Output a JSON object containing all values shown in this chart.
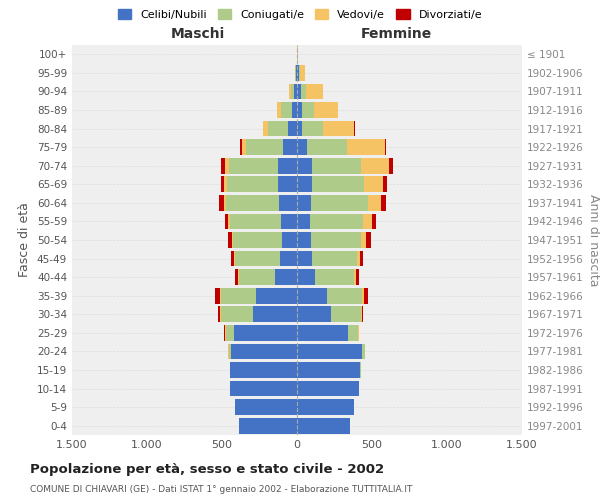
{
  "age_groups": [
    "0-4",
    "5-9",
    "10-14",
    "15-19",
    "20-24",
    "25-29",
    "30-34",
    "35-39",
    "40-44",
    "45-49",
    "50-54",
    "55-59",
    "60-64",
    "65-69",
    "70-74",
    "75-79",
    "80-84",
    "85-89",
    "90-94",
    "95-99",
    "100+"
  ],
  "birth_years": [
    "1997-2001",
    "1992-1996",
    "1987-1991",
    "1982-1986",
    "1977-1981",
    "1972-1976",
    "1967-1971",
    "1962-1966",
    "1957-1961",
    "1952-1956",
    "1947-1951",
    "1942-1946",
    "1937-1941",
    "1932-1936",
    "1927-1931",
    "1922-1926",
    "1917-1921",
    "1912-1916",
    "1907-1911",
    "1902-1906",
    "≤ 1901"
  ],
  "maschi": {
    "celibi": [
      390,
      415,
      450,
      445,
      440,
      420,
      295,
      275,
      145,
      115,
      100,
      105,
      120,
      125,
      130,
      95,
      60,
      35,
      18,
      8,
      3
    ],
    "coniugati": [
      0,
      0,
      0,
      5,
      15,
      55,
      215,
      235,
      245,
      300,
      330,
      345,
      355,
      340,
      325,
      245,
      135,
      75,
      25,
      5,
      0
    ],
    "vedovi": [
      0,
      0,
      0,
      0,
      5,
      5,
      5,
      5,
      5,
      5,
      5,
      10,
      15,
      20,
      25,
      30,
      30,
      25,
      12,
      3,
      0
    ],
    "divorziati": [
      0,
      0,
      0,
      0,
      0,
      5,
      10,
      30,
      20,
      20,
      25,
      20,
      30,
      20,
      25,
      8,
      5,
      0,
      0,
      0,
      0
    ]
  },
  "femmine": {
    "nubili": [
      355,
      380,
      415,
      420,
      430,
      340,
      225,
      200,
      120,
      98,
      90,
      85,
      95,
      100,
      100,
      65,
      35,
      35,
      28,
      10,
      3
    ],
    "coniugate": [
      0,
      0,
      0,
      5,
      20,
      65,
      200,
      230,
      260,
      300,
      335,
      355,
      375,
      345,
      325,
      265,
      135,
      80,
      35,
      8,
      0
    ],
    "vedove": [
      0,
      0,
      0,
      0,
      5,
      5,
      5,
      15,
      15,
      20,
      35,
      60,
      90,
      130,
      190,
      255,
      210,
      160,
      110,
      35,
      3
    ],
    "divorziate": [
      0,
      0,
      0,
      0,
      0,
      5,
      10,
      30,
      20,
      20,
      30,
      25,
      30,
      25,
      25,
      8,
      5,
      0,
      0,
      0,
      0
    ]
  },
  "colors": {
    "celibi": "#4472C4",
    "coniugati": "#AECB8A",
    "vedovi": "#F5C264",
    "divorziati": "#C00000"
  },
  "title": "Popolazione per età, sesso e stato civile - 2002",
  "subtitle": "COMUNE DI CHIAVARI (GE) - Dati ISTAT 1° gennaio 2002 - Elaborazione TUTTITALIA.IT",
  "xlabel_maschi": "Maschi",
  "xlabel_femmine": "Femmine",
  "ylabel_left": "Fasce di età",
  "ylabel_right": "Anni di nascita",
  "xlim": 1500,
  "xticks": [
    -1500,
    -1000,
    -500,
    0,
    500,
    1000,
    1500
  ],
  "xticklabels": [
    "1.500",
    "1.000",
    "500",
    "0",
    "500",
    "1.000",
    "1.500"
  ],
  "bg_color": "#FFFFFF",
  "legend_labels": [
    "Celibi/Nubili",
    "Coniugati/e",
    "Vedovi/e",
    "Divorziati/e"
  ]
}
